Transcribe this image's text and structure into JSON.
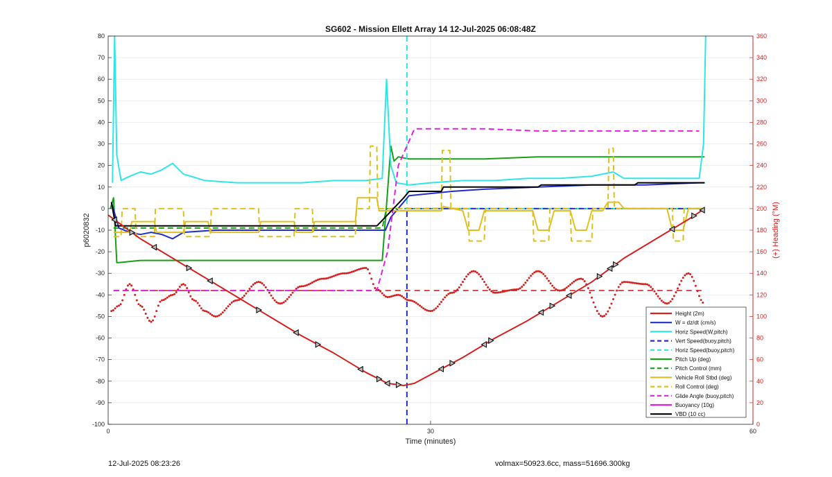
{
  "chart_data": {
    "type": "line",
    "title": "SG602 - Mission Ellett Array 14 12-Jul-2025 06:08:48Z",
    "xlabel": "Time (minutes)",
    "ylabel": "p6020832",
    "y2label": "(+) Heading (°M)",
    "xlim": [
      0,
      60
    ],
    "ylim": [
      -100,
      80
    ],
    "y2lim": [
      0,
      360
    ],
    "x_ticks": [
      "0",
      "30",
      "60"
    ],
    "y_ticks": [
      "80",
      "70",
      "60",
      "50",
      "40",
      "30",
      "20",
      "10",
      "0",
      "-10",
      "-20",
      "-30",
      "-40",
      "-50",
      "-60",
      "-70",
      "-80",
      "-90",
      "-100"
    ],
    "y2_ticks": [
      "360",
      "340",
      "320",
      "300",
      "280",
      "260",
      "240",
      "220",
      "200",
      "180",
      "160",
      "140",
      "120",
      "100",
      "80",
      "60",
      "40",
      "20",
      "0"
    ],
    "grid": true,
    "legend_position": "bottom-right",
    "series": [
      {
        "name": "Height (2m)",
        "color": "#d62020",
        "style": "solid",
        "x": [
          0,
          3,
          6,
          9,
          12,
          15,
          18,
          21,
          24,
          26,
          27.5,
          28.5,
          30,
          33,
          36,
          39,
          42,
          45,
          48,
          51,
          54,
          55.5
        ],
        "y": [
          -3,
          -14,
          -23,
          -32,
          -41,
          -50,
          -59,
          -67,
          -76,
          -81,
          -82,
          -81,
          -77,
          -69,
          -60,
          -52,
          -43,
          -34,
          -23,
          -14,
          -5,
          0
        ]
      },
      {
        "name": "W = dz/dt (cm/s)",
        "color": "#1f2fc8",
        "style": "solid",
        "x": [
          0.3,
          1,
          2,
          3,
          4,
          5,
          6,
          7,
          10,
          15,
          20,
          25,
          25.8,
          26.3,
          28,
          30,
          32,
          35,
          40,
          45,
          50,
          55,
          55.5
        ],
        "y": [
          3,
          -9,
          -11,
          -12,
          -11,
          -12,
          -14,
          -11,
          -10,
          -10,
          -10,
          -10,
          -10,
          -4,
          6,
          7,
          8,
          9,
          10,
          11,
          11,
          12,
          12
        ]
      },
      {
        "name": "Horiz Speed(W,pitch)",
        "color": "#2ee6e6",
        "style": "solid",
        "x": [
          0.4,
          0.6,
          0.8,
          1.2,
          2,
          3,
          4,
          5,
          6,
          7,
          9,
          12,
          15,
          18,
          21,
          24,
          25.5,
          25.9,
          26.3,
          26.8,
          28,
          30,
          33,
          36,
          39,
          42,
          45,
          47,
          48,
          52,
          55,
          55.4,
          55.6
        ],
        "y": [
          12,
          80,
          25,
          13,
          15,
          17,
          16,
          18,
          21,
          16,
          13,
          12,
          12,
          12,
          13,
          13,
          14,
          60,
          20,
          12,
          11,
          12,
          13,
          13,
          14,
          14,
          15,
          17,
          14,
          14,
          14,
          30,
          80
        ]
      },
      {
        "name": "Vert Speed(buoy,pitch)",
        "color": "#1f2fc8",
        "style": "dashed",
        "x": [
          27.8,
          27.8,
          27.8,
          55.5
        ],
        "y": [
          -100,
          0,
          0,
          0
        ]
      },
      {
        "name": "Horiz Speed(buoy,pitch)",
        "color": "#2ee6e6",
        "style": "dashed",
        "x": [
          27.8,
          27.8,
          27.8,
          55.5
        ],
        "y": [
          80,
          30,
          0,
          0
        ]
      },
      {
        "name": "Pitch Up (deg)",
        "color": "#16a016",
        "style": "solid",
        "x": [
          0.2,
          0.5,
          0.8,
          1,
          3,
          6,
          10,
          15,
          20,
          24,
          25,
          25.5,
          26,
          26.3,
          26.6,
          27,
          28,
          30,
          35,
          40,
          45,
          50,
          55,
          55.5
        ],
        "y": [
          0,
          5,
          -25,
          -25,
          -24,
          -24,
          -24,
          -24,
          -24,
          -24,
          -24,
          -24,
          8,
          29,
          22,
          24,
          23,
          23,
          23,
          24,
          24,
          24,
          24,
          24
        ]
      },
      {
        "name": "Pitch Control (mm)",
        "color": "#16a016",
        "style": "dashed",
        "x": [
          0.5,
          25.5,
          25.9,
          55.5
        ],
        "y": [
          -9,
          -9,
          0,
          0
        ]
      },
      {
        "name": "Vehicle Roll Stbd (deg)",
        "color": "#e0c020",
        "style": "solid",
        "x": [
          0.5,
          2,
          2.2,
          4.3,
          4.5,
          7,
          7.2,
          9.3,
          9.5,
          14,
          14.2,
          17.3,
          17.5,
          19,
          19.2,
          23,
          23.2,
          25,
          25.2,
          27,
          27.2,
          31,
          31.2,
          33,
          33.5,
          34.5,
          35,
          37,
          37.5,
          38.5,
          39,
          39.5,
          40,
          41,
          41.5,
          43,
          43.5,
          44.5,
          45,
          46,
          46.5,
          47.5,
          48,
          52,
          52.5,
          53.5,
          54,
          55.5
        ],
        "y": [
          -11,
          -11,
          -6,
          -6,
          -11,
          -11,
          -6,
          -6,
          -11,
          -11,
          -6,
          -6,
          -11,
          -11,
          -6,
          -6,
          5,
          5,
          -1,
          -1,
          -1,
          -1,
          1,
          -1,
          -10,
          -10,
          -1,
          -1,
          -1,
          -1,
          -1,
          -1,
          -10,
          -10,
          -1,
          -1,
          -10,
          -10,
          -1,
          -1,
          3,
          3,
          0,
          0,
          -10,
          -10,
          0,
          0
        ]
      },
      {
        "name": "Roll Control (deg)",
        "color": "#e0c020",
        "style": "dashed",
        "x": [
          0.5,
          1.2,
          1.3,
          2.5,
          2.6,
          4.3,
          4.4,
          7,
          7.1,
          9.5,
          9.6,
          14,
          14.1,
          17.3,
          17.4,
          19,
          19.1,
          23,
          23.1,
          24.3,
          24.4,
          25,
          25.1,
          31,
          31.1,
          31.8,
          31.9,
          33.5,
          33.6,
          35,
          35.1,
          39.5,
          39.6,
          41,
          41.1,
          43,
          43.1,
          45,
          45.1,
          46.5,
          46.6,
          47,
          47.1,
          52.5,
          52.6,
          53.5,
          53.6,
          55.5
        ],
        "y": [
          -13,
          -13,
          0,
          0,
          -13,
          -13,
          0,
          0,
          -13,
          -13,
          0,
          0,
          -13,
          -13,
          0,
          0,
          -13,
          -13,
          0,
          0,
          29,
          29,
          0,
          0,
          27,
          27,
          0,
          0,
          -15,
          -15,
          0,
          0,
          -15,
          -15,
          0,
          0,
          -15,
          -15,
          0,
          0,
          28,
          28,
          0,
          0,
          -15,
          -15,
          0,
          0
        ]
      },
      {
        "name": "Glide Angle (buoy,pitch)",
        "color": "#e020e0",
        "style": "dashed",
        "x": [
          0.5,
          10,
          20,
          24,
          25,
          26,
          27,
          28.5,
          30,
          35,
          40,
          45,
          50,
          55
        ],
        "y": [
          -38,
          -38,
          -38,
          -38,
          -38,
          -20,
          20,
          37,
          37,
          37,
          36,
          36,
          36,
          36
        ]
      },
      {
        "name": "Buoyancy (10g)",
        "color": "#e020e0",
        "style": "solid",
        "x": [],
        "y": []
      },
      {
        "name": "VBD (10 cc)",
        "color": "#000000",
        "style": "solid",
        "x": [
          0.3,
          0.7,
          1,
          25,
          25.4,
          27.5,
          28,
          31,
          31.2,
          40,
          40.3,
          49,
          49.3,
          55.5
        ],
        "y": [
          3,
          -8,
          -8,
          -8,
          -6,
          5,
          8,
          8,
          10,
          10,
          11,
          11,
          12,
          12
        ]
      }
    ],
    "heading": {
      "name": "Heading (°M, right axis)",
      "color": "#d62020",
      "x": [
        0.3,
        1,
        2,
        3,
        4,
        5,
        6,
        7,
        8,
        9,
        10,
        12,
        14,
        16,
        18,
        20,
        22,
        24,
        25,
        26,
        27,
        28,
        30,
        32,
        34,
        36,
        38,
        40,
        42,
        44,
        46,
        48,
        50,
        52,
        54,
        55.5
      ],
      "y": [
        105,
        110,
        130,
        110,
        95,
        115,
        120,
        130,
        115,
        105,
        100,
        115,
        132,
        112,
        128,
        135,
        140,
        145,
        125,
        118,
        120,
        115,
        105,
        122,
        142,
        122,
        125,
        142,
        124,
        135,
        100,
        132,
        130,
        112,
        140,
        112
      ],
      "target_y": 124
    }
  },
  "footer": {
    "left": "12-Jul-2025 08:23:26",
    "right": "volmax=50923.6cc, mass=51696.300kg"
  }
}
